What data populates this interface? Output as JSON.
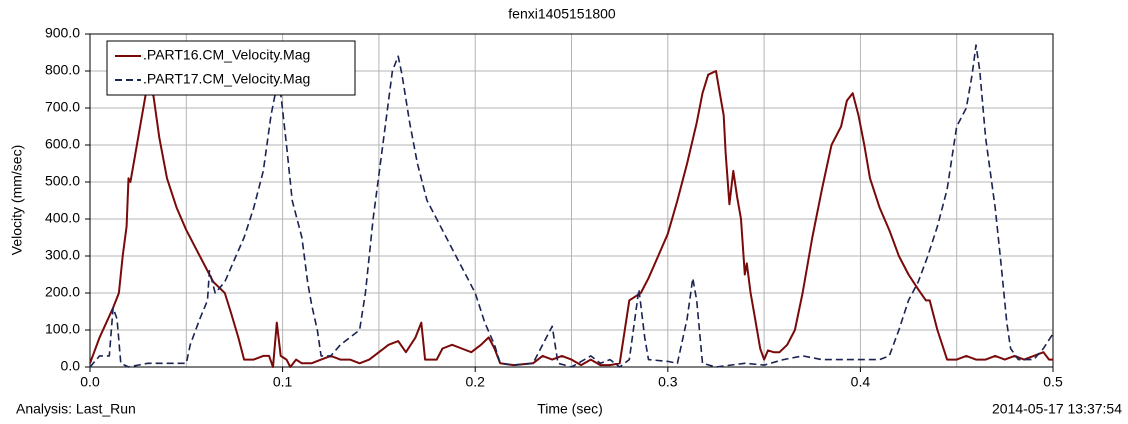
{
  "chart_data": {
    "type": "line",
    "title": "fenxi1405151800",
    "x_label": "Time (sec)",
    "y_label": "Velocity (mm/sec)",
    "footer_left": "Analysis:  Last_Run",
    "footer_right": "2014-05-17 13:37:54",
    "xlim": [
      0,
      0.5
    ],
    "ylim": [
      0,
      900
    ],
    "xticks": [
      {
        "value": 0,
        "label": "0.0"
      },
      {
        "value": 0.1,
        "label": "0.1"
      },
      {
        "value": 0.2,
        "label": "0.2"
      },
      {
        "value": 0.3,
        "label": "0.3"
      },
      {
        "value": 0.4,
        "label": "0.4"
      },
      {
        "value": 0.5,
        "label": "0.5"
      }
    ],
    "x_grid": [
      0.05,
      0.15,
      0.25,
      0.35,
      0.45
    ],
    "yticks": [
      {
        "value": 0,
        "label": "0.0"
      },
      {
        "value": 100,
        "label": "100.0"
      },
      {
        "value": 200,
        "label": "200.0"
      },
      {
        "value": 300,
        "label": "300.0"
      },
      {
        "value": 400,
        "label": "400.0"
      },
      {
        "value": 500,
        "label": "500.0"
      },
      {
        "value": 600,
        "label": "600.0"
      },
      {
        "value": 700,
        "label": "700.0"
      },
      {
        "value": 800,
        "label": "800.0"
      },
      {
        "value": 900,
        "label": "900.0"
      }
    ],
    "grid": true,
    "legend": "upper-left",
    "series": [
      {
        "name": ".PART16.CM_Velocity.Mag",
        "color": "#7a0a0a",
        "dash": "solid",
        "x": [
          0,
          0.005,
          0.012,
          0.015,
          0.017,
          0.019,
          0.02,
          0.021,
          0.023,
          0.026,
          0.029,
          0.031,
          0.033,
          0.036,
          0.04,
          0.045,
          0.05,
          0.055,
          0.06,
          0.064,
          0.068,
          0.07,
          0.073,
          0.077,
          0.08,
          0.085,
          0.09,
          0.093,
          0.095,
          0.097,
          0.099,
          0.102,
          0.104,
          0.107,
          0.11,
          0.115,
          0.12,
          0.125,
          0.13,
          0.135,
          0.14,
          0.145,
          0.15,
          0.155,
          0.16,
          0.164,
          0.169,
          0.172,
          0.174,
          0.18,
          0.183,
          0.188,
          0.193,
          0.198,
          0.203,
          0.207,
          0.21,
          0.213,
          0.22,
          0.23,
          0.235,
          0.24,
          0.245,
          0.25,
          0.255,
          0.26,
          0.265,
          0.27,
          0.275,
          0.28,
          0.283,
          0.286,
          0.29,
          0.295,
          0.3,
          0.305,
          0.31,
          0.315,
          0.318,
          0.321,
          0.325,
          0.327,
          0.329,
          0.33,
          0.332,
          0.334,
          0.336,
          0.338,
          0.34,
          0.341,
          0.343,
          0.345,
          0.348,
          0.35,
          0.352,
          0.355,
          0.358,
          0.362,
          0.366,
          0.37,
          0.375,
          0.38,
          0.385,
          0.39,
          0.393,
          0.396,
          0.399,
          0.402,
          0.405,
          0.41,
          0.415,
          0.42,
          0.425,
          0.43,
          0.434,
          0.436,
          0.44,
          0.445,
          0.45,
          0.455,
          0.46,
          0.465,
          0.47,
          0.475,
          0.48,
          0.485,
          0.49,
          0.495,
          0.498,
          0.5
        ],
        "values": [
          10,
          80,
          160,
          200,
          300,
          380,
          510,
          500,
          560,
          650,
          740,
          770,
          730,
          620,
          510,
          430,
          370,
          320,
          270,
          230,
          210,
          200,
          150,
          80,
          20,
          20,
          30,
          30,
          0,
          120,
          30,
          20,
          0,
          20,
          10,
          10,
          20,
          30,
          20,
          20,
          10,
          20,
          40,
          60,
          70,
          40,
          80,
          120,
          20,
          20,
          50,
          60,
          50,
          40,
          60,
          80,
          50,
          10,
          5,
          10,
          30,
          20,
          30,
          20,
          5,
          20,
          5,
          5,
          10,
          180,
          190,
          200,
          240,
          300,
          360,
          450,
          550,
          660,
          740,
          790,
          800,
          740,
          680,
          580,
          440,
          530,
          460,
          400,
          250,
          280,
          200,
          140,
          50,
          20,
          45,
          40,
          40,
          60,
          100,
          200,
          350,
          480,
          600,
          650,
          720,
          740,
          680,
          600,
          510,
          430,
          370,
          300,
          250,
          210,
          180,
          180,
          100,
          20,
          20,
          30,
          20,
          20,
          30,
          20,
          30,
          20,
          30,
          40,
          20,
          20
        ]
      },
      {
        "name": ".PART17.CM_Velocity.Mag",
        "color": "#1a2352",
        "dash": "dashed",
        "x": [
          0,
          0.005,
          0.01,
          0.012,
          0.014,
          0.016,
          0.02,
          0.025,
          0.03,
          0.035,
          0.04,
          0.045,
          0.05,
          0.052,
          0.057,
          0.061,
          0.062,
          0.065,
          0.07,
          0.075,
          0.08,
          0.085,
          0.09,
          0.094,
          0.097,
          0.099,
          0.102,
          0.105,
          0.108,
          0.11,
          0.113,
          0.115,
          0.118,
          0.12,
          0.125,
          0.13,
          0.135,
          0.14,
          0.143,
          0.147,
          0.152,
          0.157,
          0.16,
          0.162,
          0.166,
          0.17,
          0.175,
          0.18,
          0.185,
          0.19,
          0.195,
          0.2,
          0.205,
          0.21,
          0.213,
          0.22,
          0.23,
          0.24,
          0.243,
          0.25,
          0.26,
          0.265,
          0.27,
          0.275,
          0.28,
          0.285,
          0.288,
          0.29,
          0.3,
          0.305,
          0.31,
          0.313,
          0.315,
          0.318,
          0.325,
          0.34,
          0.35,
          0.36,
          0.37,
          0.38,
          0.395,
          0.4,
          0.41,
          0.415,
          0.42,
          0.425,
          0.43,
          0.435,
          0.44,
          0.445,
          0.45,
          0.455,
          0.458,
          0.46,
          0.462,
          0.465,
          0.47,
          0.473,
          0.476,
          0.478,
          0.482,
          0.49,
          0.495,
          0.5
        ],
        "values": [
          0,
          30,
          30,
          160,
          130,
          10,
          0,
          5,
          10,
          10,
          10,
          10,
          10,
          60,
          130,
          180,
          260,
          200,
          230,
          290,
          350,
          430,
          530,
          680,
          760,
          740,
          600,
          450,
          390,
          350,
          230,
          170,
          100,
          30,
          30,
          60,
          80,
          100,
          200,
          400,
          600,
          800,
          840,
          790,
          660,
          550,
          450,
          400,
          350,
          300,
          250,
          200,
          120,
          60,
          10,
          5,
          10,
          110,
          10,
          0,
          30,
          10,
          20,
          0,
          20,
          210,
          80,
          20,
          15,
          10,
          130,
          240,
          180,
          10,
          0,
          10,
          5,
          20,
          30,
          20,
          20,
          20,
          20,
          30,
          100,
          180,
          230,
          300,
          380,
          480,
          650,
          700,
          790,
          870,
          800,
          620,
          430,
          280,
          120,
          50,
          20,
          20,
          50,
          90
        ]
      }
    ]
  }
}
